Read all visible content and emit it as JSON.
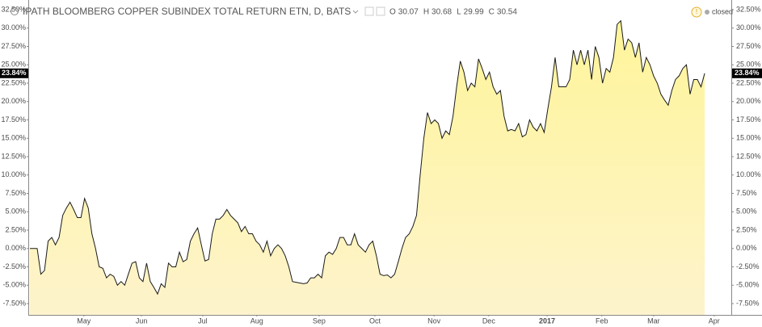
{
  "chart_data": {
    "type": "area",
    "title": "IPATH BLOOMBERG COPPER SUBINDEX TOTAL RETURN ETN, D, BATS",
    "ohlc": [
      {
        "label": "O",
        "value": 30.07
      },
      {
        "label": "H",
        "value": 30.68
      },
      {
        "label": "L",
        "value": 29.99
      },
      {
        "label": "C",
        "value": 30.54
      }
    ],
    "status": "closed",
    "color": "#1a1a1a",
    "fill_top": "#fff59a",
    "fill_bottom": "#fdf3cc",
    "grid": false,
    "values": [
      0,
      0,
      0,
      -3.5,
      -3,
      1,
      1.5,
      0.5,
      1.5,
      4.5,
      5.5,
      6.3,
      5.3,
      4.2,
      4.2,
      6.8,
      5.5,
      2,
      0,
      -2.5,
      -2.7,
      -4,
      -3.5,
      -3.8,
      -5,
      -4.5,
      -5,
      -3.5,
      -2,
      -1.8,
      -4,
      -4.5,
      -2,
      -4.5,
      -5.3,
      -6.2,
      -4.8,
      -5.3,
      -2,
      -2.5,
      -2.5,
      -0.5,
      -1.8,
      -1.5,
      1,
      2,
      2.8,
      0.5,
      -1.7,
      -1.5,
      2,
      4,
      4,
      4.5,
      5.3,
      4.5,
      4,
      3.5,
      2.3,
      3,
      2,
      2,
      1,
      0.5,
      -0.5,
      1,
      -1,
      0,
      0.5,
      0,
      -1,
      -2.5,
      -4.5,
      -4.6,
      -4.7,
      -4.8,
      -4.7,
      -4,
      -4,
      -3.5,
      -4,
      -1,
      -0.5,
      -0.8,
      0,
      1.5,
      1.5,
      0.5,
      0.5,
      2,
      0.5,
      0,
      -0.5,
      0.5,
      1,
      -1,
      -3.5,
      -3.7,
      -3.6,
      -4,
      -3.5,
      -1.8,
      0,
      1.5,
      2,
      3,
      4.5,
      10,
      15,
      18.5,
      17,
      17.5,
      17,
      15,
      16,
      15.5,
      18,
      22,
      25.5,
      24,
      21.5,
      22.5,
      22,
      25.8,
      24.5,
      23,
      24,
      22,
      21,
      21.5,
      18,
      16,
      16.2,
      16,
      17,
      15.2,
      15.5,
      17.5,
      16.5,
      16,
      17,
      15.8,
      19,
      22,
      26,
      22,
      22,
      22,
      23,
      27,
      25,
      27,
      25,
      27,
      23,
      27.5,
      26,
      22.5,
      24.5,
      24,
      26,
      30.5,
      31,
      27,
      28.5,
      28,
      26,
      28,
      24,
      26,
      25,
      23.5,
      22.5,
      21,
      20.2,
      19.5,
      21.5,
      23,
      23.5,
      24.5,
      25,
      21,
      23,
      23,
      22,
      23.84
    ],
    "last_value": {
      "value": 23.84,
      "label": "23.84%"
    },
    "xlim": [
      -0.44,
      192.3
    ],
    "xticks": [
      {
        "value": 14.8,
        "label": "May"
      },
      {
        "value": 30.6,
        "label": "Jun"
      },
      {
        "value": 47.4,
        "label": "Jul"
      },
      {
        "value": 62.2,
        "label": "Aug"
      },
      {
        "value": 79.3,
        "label": "Sep"
      },
      {
        "value": 94.6,
        "label": "Oct"
      },
      {
        "value": 110.8,
        "label": "Nov"
      },
      {
        "value": 125.8,
        "label": "Dec"
      },
      {
        "value": 141.8,
        "label": "2017"
      },
      {
        "value": 156.8,
        "label": "Feb"
      },
      {
        "value": 171.0,
        "label": "Mar"
      },
      {
        "value": 187.6,
        "label": "Apr"
      }
    ],
    "ylim": [
      -9.04,
      33.82
    ],
    "yticks": [
      {
        "value": 32.5,
        "label": "32.50%"
      },
      {
        "value": 30,
        "label": "30.00%"
      },
      {
        "value": 27.5,
        "label": "27.50%"
      },
      {
        "value": 25,
        "label": "25.00%"
      },
      {
        "value": 22.5,
        "label": "22.50%"
      },
      {
        "value": 20,
        "label": "20.00%"
      },
      {
        "value": 17.5,
        "label": "17.50%"
      },
      {
        "value": 15,
        "label": "15.00%"
      },
      {
        "value": 12.5,
        "label": "12.50%"
      },
      {
        "value": 10,
        "label": "10.00%"
      },
      {
        "value": 7.5,
        "label": "7.50%"
      },
      {
        "value": 5,
        "label": "5.00%"
      },
      {
        "value": 2.5,
        "label": "2.50%"
      },
      {
        "value": 0,
        "label": "0.00%"
      },
      {
        "value": -2.5,
        "label": "-2.50%"
      },
      {
        "value": -5,
        "label": "-5.00%"
      },
      {
        "value": -7.5,
        "label": "-7.50%"
      }
    ]
  }
}
